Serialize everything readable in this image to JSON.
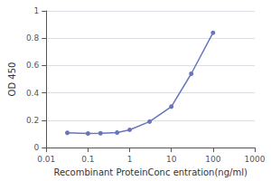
{
  "chart_data": {
    "type": "line",
    "x": [
      0.032,
      0.1,
      0.2,
      0.5,
      1.0,
      3.0,
      10.0,
      30.0,
      100.0
    ],
    "values": [
      0.108,
      0.103,
      0.105,
      0.11,
      0.13,
      0.19,
      0.3,
      0.54,
      0.84
    ],
    "color": "#6677bb",
    "marker": "circle",
    "xlabel": "Recombinant ProteinConc entration(ng/ml)",
    "ylabel": "OD 450",
    "log": "x",
    "xlim": [
      0.01,
      1000
    ],
    "ylim": [
      0,
      1
    ],
    "xticks": [
      0.01,
      0.1,
      1,
      10,
      100,
      1000
    ],
    "yticks": [
      0,
      0.2,
      0.4,
      0.6,
      0.8,
      1
    ],
    "grid": "y"
  }
}
